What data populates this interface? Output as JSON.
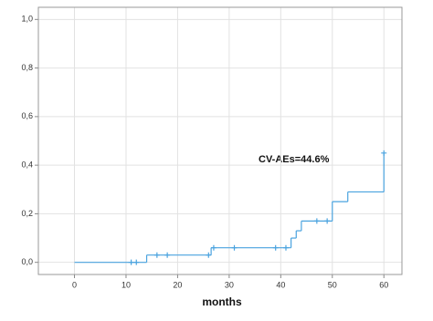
{
  "chart_data": {
    "type": "step",
    "x_label": "months",
    "annotation": "CV-AEs=44.6%",
    "color": "#4aa3df",
    "grid": true,
    "x": [
      0,
      14,
      26.5,
      42,
      43,
      44,
      50,
      53,
      60
    ],
    "values": [
      0,
      0.03,
      0.06,
      0.1,
      0.13,
      0.17,
      0.25,
      0.29,
      0.45
    ],
    "censored": {
      "x": [
        11,
        12,
        16,
        18,
        26,
        27,
        31,
        39,
        41,
        47,
        49,
        60
      ],
      "values": [
        0,
        0,
        0.03,
        0.03,
        0.03,
        0.06,
        0.06,
        0.06,
        0.06,
        0.17,
        0.17,
        0.45
      ]
    },
    "xlim": [
      -7,
      63.5
    ],
    "xticks": [
      0,
      10,
      20,
      30,
      40,
      50,
      60
    ],
    "ylim": [
      -0.05,
      1.05
    ],
    "yticks": [
      {
        "value": 0,
        "label": "0,0"
      },
      {
        "value": 0.2,
        "label": "0,2"
      },
      {
        "value": 0.4,
        "label": "0,4"
      },
      {
        "value": 0.6,
        "label": "0,6"
      },
      {
        "value": 0.8,
        "label": "0,8"
      },
      {
        "value": 1.0,
        "label": "1,0"
      }
    ]
  }
}
